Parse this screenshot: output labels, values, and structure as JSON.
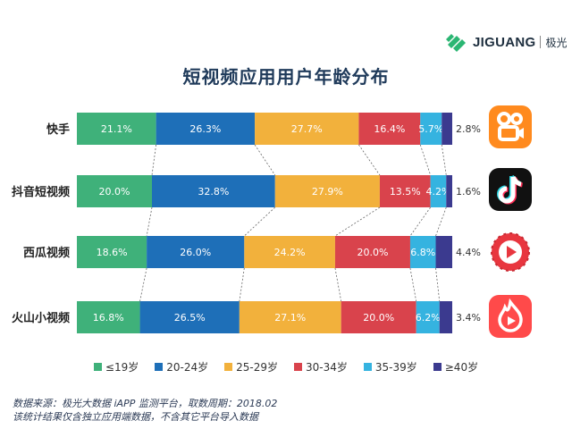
{
  "brand": {
    "name": "JIGUANG",
    "name_cn": "极光"
  },
  "colors": {
    "c1": "#3fb17a",
    "c2": "#1e6fb8",
    "c3": "#f2b13c",
    "c4": "#d9434c",
    "c5": "#35b3e0",
    "c6": "#3b3a8f",
    "title": "#1f3a5a"
  },
  "chart_data": {
    "type": "bar",
    "orientation": "horizontal",
    "stacked": true,
    "title": "短视频应用用户年龄分布",
    "categories": [
      "快手",
      "抖音短视频",
      "西瓜视频",
      "火山小视频"
    ],
    "series": [
      {
        "name": "≤19岁",
        "color": "#3fb17a",
        "values": [
          21.1,
          20.0,
          18.6,
          16.8
        ]
      },
      {
        "name": "20-24岁",
        "color": "#1e6fb8",
        "values": [
          26.3,
          32.8,
          26.0,
          26.5
        ]
      },
      {
        "name": "25-29岁",
        "color": "#f2b13c",
        "values": [
          27.7,
          27.9,
          24.2,
          27.1
        ]
      },
      {
        "name": "30-34岁",
        "color": "#d9434c",
        "values": [
          16.4,
          13.5,
          20.0,
          20.0
        ]
      },
      {
        "name": "35-39岁",
        "color": "#35b3e0",
        "values": [
          5.7,
          4.2,
          6.8,
          6.2
        ]
      },
      {
        "name": "≥40岁",
        "color": "#3b3a8f",
        "values": [
          2.8,
          1.6,
          4.4,
          3.4
        ]
      }
    ],
    "xlim": [
      0,
      100
    ],
    "unit": "%"
  },
  "apps": [
    {
      "name": "快手",
      "icon": "kuaishou-icon",
      "color": "#ff8a1e"
    },
    {
      "name": "抖音短视频",
      "icon": "douyin-icon",
      "color": "#111111"
    },
    {
      "name": "西瓜视频",
      "icon": "xigua-icon",
      "color": "#e8363f"
    },
    {
      "name": "火山小视频",
      "icon": "huoshan-icon",
      "color": "#ff4a4a"
    }
  ],
  "footnote": {
    "line1": "数据来源：极光大数据 iAPP 监测平台，取数周期：2018.02",
    "line2": "该统计结果仅含独立应用端数据，不含其它平台导入数据"
  }
}
